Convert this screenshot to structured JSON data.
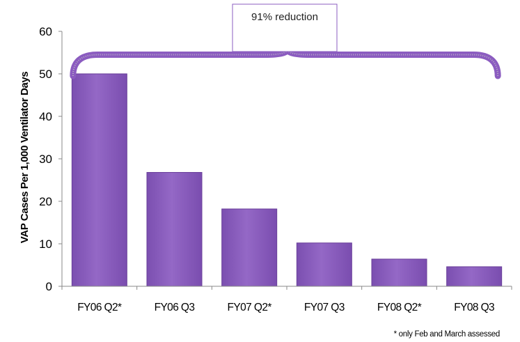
{
  "chart_data": {
    "type": "bar",
    "categories": [
      "FY06 Q2*",
      "FY06 Q3",
      "FY07 Q2*",
      "FY07 Q3",
      "FY08 Q2*",
      "FY08 Q3"
    ],
    "values": [
      50,
      26.8,
      18.2,
      10.2,
      6.4,
      4.6
    ],
    "title": "",
    "xlabel": "",
    "ylabel": "VAP Cases Per 1,000 Ventilator Days",
    "ylim": [
      0,
      60
    ],
    "yticks": [
      0,
      10,
      20,
      30,
      40,
      50,
      60
    ],
    "grid": false,
    "legend": "none",
    "bar_color": "#8e5fc0",
    "bar_edge_color": "#6a3f9a",
    "brace_color": "#8b5cc0",
    "annotation": "91% reduction",
    "footnote": "* only Feb and March assessed"
  }
}
